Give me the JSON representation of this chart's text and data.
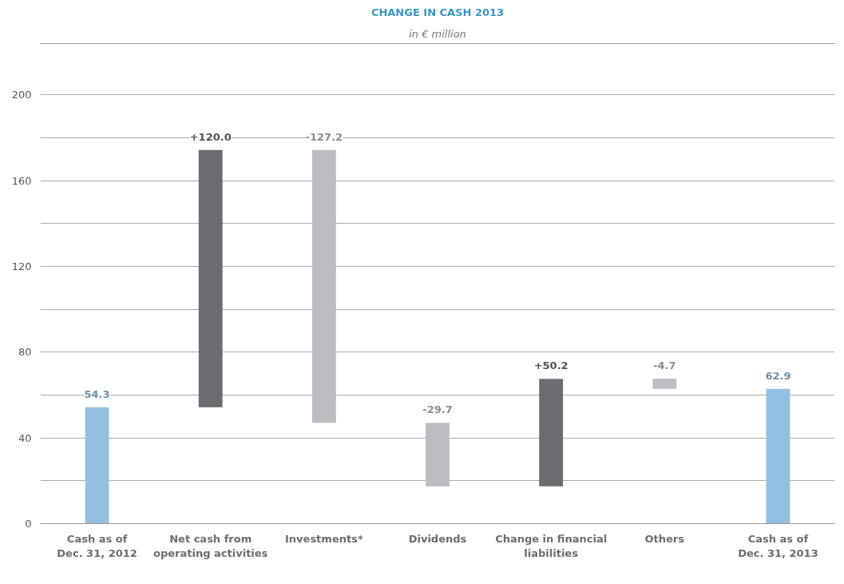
{
  "chart_data": {
    "type": "bar",
    "title": "CHANGE IN CASH 2013",
    "subtitle": "in € million",
    "categories": [
      "Cash as of\nDec. 31, 2012",
      "Net cash from\noperating activities",
      "Investments*",
      "Dividends",
      "Change in financial\nliabilities",
      "Others",
      "Cash as of\nDec. 31, 2013"
    ],
    "values": [
      54.3,
      120.0,
      -127.2,
      -29.7,
      50.2,
      -4.7,
      62.9
    ],
    "base": [
      0,
      54.3,
      174.3,
      47.1,
      17.4,
      67.6,
      0
    ],
    "colors": [
      "#93c0e0",
      "#6b6c70",
      "#bcbdc1",
      "#bcbdc1",
      "#6b6c70",
      "#bcbdc1",
      "#93c0e0"
    ],
    "value_labels": [
      "54.3",
      "+120.0",
      "-127.2",
      "-29.7",
      "+50.2",
      "-4.7",
      "62.9"
    ],
    "ylim": [
      0,
      224
    ],
    "yticks": [
      0,
      {
        "value": 20,
        "label": null
      },
      40,
      {
        "value": 60,
        "label": null
      },
      80,
      {
        "value": 100,
        "label": null
      },
      120,
      {
        "value": 140,
        "label": null
      },
      160,
      {
        "value": 180,
        "label": null
      },
      200
    ],
    "grid": "y"
  }
}
